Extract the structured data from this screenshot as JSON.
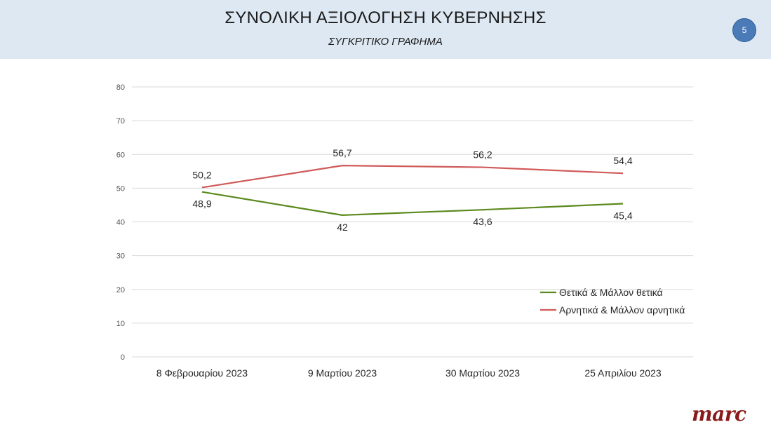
{
  "header": {
    "title": "ΣΥΝΟΛΙΚΗ ΑΞΙΟΛΟΓΗΣΗ ΚΥΒΕΡΝΗΣΗΣ",
    "subtitle": "ΣΥΓΚΡΙΤΙΚΟ ΓΡΑΦΗΜΑ",
    "page_number": "5",
    "background_color": "#dde8f2"
  },
  "logo": {
    "text": "marc",
    "color": "#8b1a1a"
  },
  "chart_data": {
    "type": "line",
    "categories": [
      "8 Φεβρουαρίου 2023",
      "9 Μαρτίου 2023",
      "30 Μαρτίου 2023",
      "25 Απριλίου 2023"
    ],
    "series": [
      {
        "name": "Θετικά & Μάλλον θετικά",
        "values": [
          48.9,
          42,
          43.6,
          45.4
        ],
        "labels": [
          "48,9",
          "42",
          "43,6",
          "45,4"
        ],
        "color": "#5b8a1e"
      },
      {
        "name": "Αρνητικά & Μάλλον αρνητικά",
        "values": [
          50.2,
          56.7,
          56.2,
          54.4
        ],
        "labels": [
          "50,2",
          "56,7",
          "56,2",
          "54,4"
        ],
        "color": "#d05a5a"
      }
    ],
    "ylim": [
      0,
      80
    ],
    "yticks": [
      0,
      10,
      20,
      30,
      40,
      50,
      60,
      70,
      80
    ],
    "grid": true,
    "legend_position": "bottom-right"
  }
}
